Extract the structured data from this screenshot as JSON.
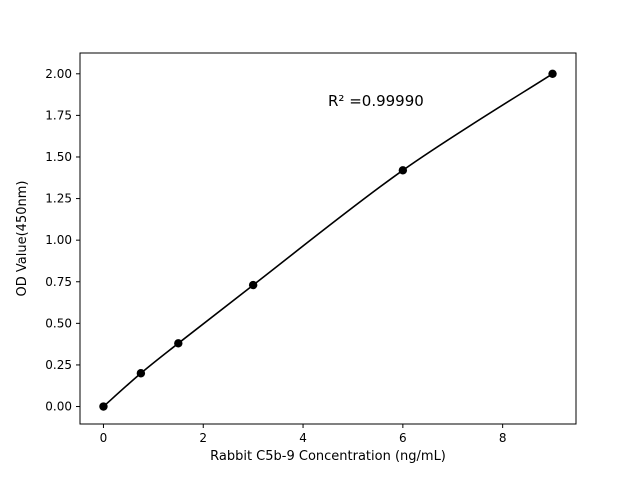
{
  "chart_data": {
    "type": "scatter",
    "title": "",
    "xlabel": "Rabbit C5b-9 Concentration (ng/mL)",
    "ylabel": "OD Value(450nm)",
    "annotation": "R² =0.99990",
    "x": [
      0,
      0.75,
      1.5,
      3,
      6,
      9
    ],
    "y": [
      0.0,
      0.2,
      0.38,
      0.73,
      1.42,
      2.0
    ],
    "xticks": [
      0,
      2,
      4,
      6,
      8
    ],
    "yticks": [
      0.0,
      0.25,
      0.5,
      0.75,
      1.0,
      1.25,
      1.5,
      1.75,
      2.0
    ],
    "xlim": [
      -0.47,
      9.47
    ],
    "ylim": [
      -0.105,
      2.125
    ],
    "grid": false,
    "legend_position": "none",
    "line_color": "#000000",
    "marker_color": "#000000",
    "background_color": "#ffffff"
  }
}
